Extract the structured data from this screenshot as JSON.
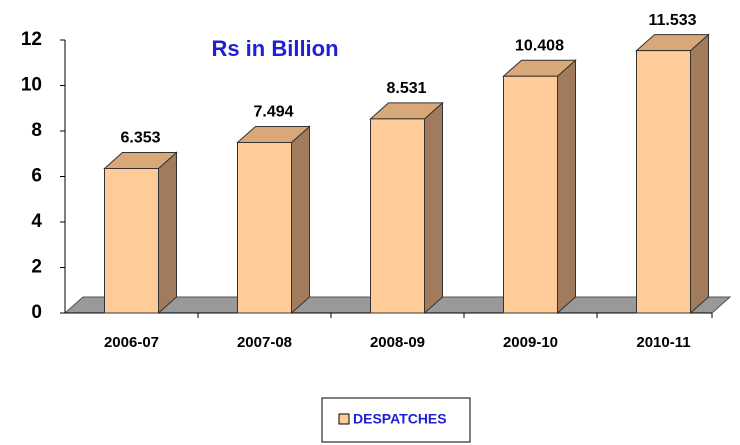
{
  "chart_data": {
    "type": "bar3d",
    "title": "Rs in Billion",
    "categories": [
      "2006-07",
      "2007-08",
      "2008-09",
      "2009-10",
      "2010-11"
    ],
    "series": [
      {
        "name": "DESPATCHES",
        "color": "#ffcc99",
        "values": [
          6.353,
          7.494,
          8.531,
          10.408,
          11.533
        ]
      }
    ],
    "ylim": [
      0,
      12
    ],
    "yticks": [
      0,
      2,
      4,
      6,
      8,
      10,
      12
    ],
    "legend": "bottom"
  }
}
